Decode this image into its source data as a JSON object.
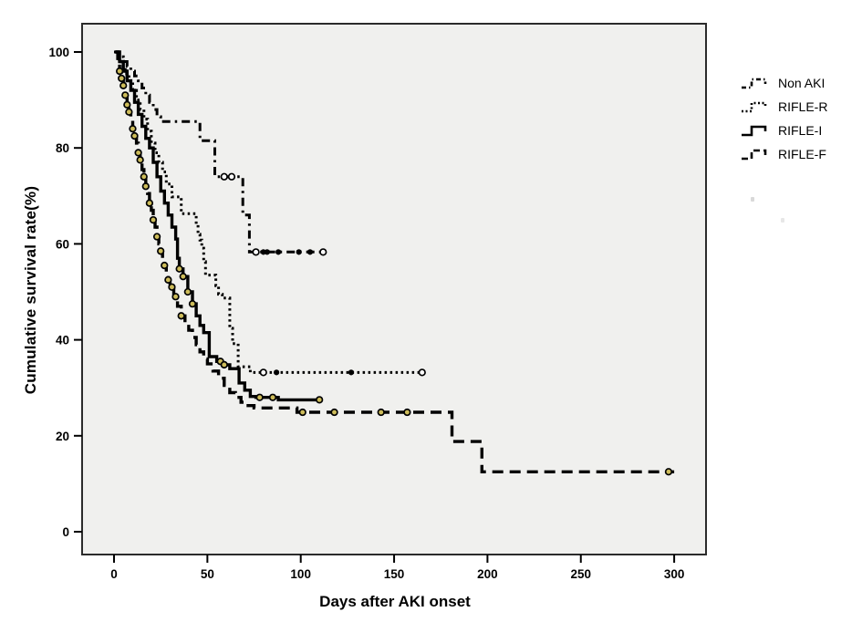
{
  "figure": {
    "background": "#ffffff",
    "plot_background": "#f0f0ee",
    "border_color": "#2b2b2b",
    "line_color": "#000000",
    "censor_open_fill": "#ffffff",
    "censor_yellow_fill": "#cdbc5a"
  },
  "chart_data": {
    "type": "line",
    "subtype": "kaplan-meier-step-survival",
    "title": "",
    "xlabel": "Days after AKI onset",
    "ylabel": "Cumulative survival rate(%)",
    "xlim": [
      0,
      300
    ],
    "ylim": [
      0,
      100
    ],
    "x_ticks": [
      0,
      50,
      100,
      150,
      200,
      250,
      300
    ],
    "y_ticks": [
      0,
      20,
      40,
      60,
      80,
      100
    ],
    "grid": false,
    "legend_position": "right-outside",
    "series": [
      {
        "name": "Non AKI",
        "dash": "dashdot",
        "stroke_width": 3,
        "censor_style": "open",
        "points": [
          [
            0,
            100
          ],
          [
            3,
            99
          ],
          [
            5,
            98
          ],
          [
            7,
            97
          ],
          [
            9,
            96
          ],
          [
            11,
            95
          ],
          [
            13,
            94
          ],
          [
            15,
            92.5
          ],
          [
            17,
            91
          ],
          [
            19,
            89.5
          ],
          [
            21,
            88
          ],
          [
            23,
            86.5
          ],
          [
            25,
            85.5
          ],
          [
            46,
            81.5
          ],
          [
            54,
            74
          ],
          [
            69,
            66
          ],
          [
            72.5,
            58.3
          ],
          [
            112,
            58.3
          ]
        ],
        "censor_days": [
          59,
          63,
          76,
          112
        ],
        "dot_days": [
          80,
          82,
          88,
          99,
          105
        ]
      },
      {
        "name": "RIFLE-R",
        "dash": "dotted",
        "stroke_width": 3,
        "censor_style": "open",
        "points": [
          [
            0,
            100
          ],
          [
            2,
            98.5
          ],
          [
            4,
            97
          ],
          [
            6,
            95.5
          ],
          [
            8,
            94
          ],
          [
            10,
            92
          ],
          [
            12,
            90
          ],
          [
            14,
            88
          ],
          [
            16,
            86
          ],
          [
            18,
            83.5
          ],
          [
            20,
            81
          ],
          [
            22,
            79
          ],
          [
            24,
            77
          ],
          [
            26,
            75
          ],
          [
            28,
            72.5
          ],
          [
            31,
            69.8
          ],
          [
            36,
            66.3
          ],
          [
            44,
            63.9
          ],
          [
            45,
            62
          ],
          [
            46,
            60.8
          ],
          [
            47,
            59.1
          ],
          [
            48,
            56.3
          ],
          [
            49,
            53.5
          ],
          [
            54.5,
            51.3
          ],
          [
            56,
            49.5
          ],
          [
            58,
            48.7
          ],
          [
            62,
            42.4
          ],
          [
            63.5,
            39.2
          ],
          [
            66.5,
            34.4
          ],
          [
            73,
            33.2
          ],
          [
            165,
            33.2
          ]
        ],
        "censor_days": [
          80,
          165
        ],
        "dot_days": [
          87,
          127
        ]
      },
      {
        "name": "RIFLE-I",
        "dash": "solid",
        "stroke_width": 3.4,
        "censor_style": "yellow",
        "points": [
          [
            1,
            100
          ],
          [
            3,
            98
          ],
          [
            5,
            96
          ],
          [
            7,
            94
          ],
          [
            9,
            92
          ],
          [
            11,
            89.5
          ],
          [
            13,
            87
          ],
          [
            15,
            84.5
          ],
          [
            17,
            82
          ],
          [
            19,
            80
          ],
          [
            21,
            77
          ],
          [
            23,
            74
          ],
          [
            25,
            71
          ],
          [
            27,
            68.5
          ],
          [
            29,
            66
          ],
          [
            31,
            63.5
          ],
          [
            33,
            61
          ],
          [
            34,
            57
          ],
          [
            35,
            54.8
          ],
          [
            37,
            53.2
          ],
          [
            39.5,
            50
          ],
          [
            42,
            47.5
          ],
          [
            44,
            45
          ],
          [
            46,
            43
          ],
          [
            48,
            41.5
          ],
          [
            51,
            36.5
          ],
          [
            55,
            35.5
          ],
          [
            58,
            34.8
          ],
          [
            62,
            34
          ],
          [
            67,
            31
          ],
          [
            70,
            29.5
          ],
          [
            73,
            28.2
          ],
          [
            76,
            28
          ],
          [
            88,
            27.5
          ],
          [
            110,
            27.5
          ]
        ],
        "censor_days": [
          35,
          37,
          39.5,
          42,
          57,
          59,
          78,
          85,
          110
        ],
        "dot_days": []
      },
      {
        "name": "RIFLE-F",
        "dash": "dashed",
        "stroke_width": 3.4,
        "censor_style": "yellow",
        "points": [
          [
            0.5,
            100
          ],
          [
            2,
            98
          ],
          [
            3,
            96
          ],
          [
            4,
            94.5
          ],
          [
            5,
            93
          ],
          [
            6,
            91
          ],
          [
            7,
            89
          ],
          [
            8,
            87.5
          ],
          [
            9,
            86
          ],
          [
            10,
            84
          ],
          [
            11,
            82.5
          ],
          [
            12,
            81
          ],
          [
            13,
            79
          ],
          [
            14,
            77.5
          ],
          [
            15,
            75.5
          ],
          [
            16,
            74
          ],
          [
            17,
            72
          ],
          [
            18,
            70.5
          ],
          [
            19,
            68.5
          ],
          [
            20,
            67
          ],
          [
            21,
            65
          ],
          [
            22,
            63.5
          ],
          [
            23,
            61.5
          ],
          [
            24,
            60
          ],
          [
            25,
            58.5
          ],
          [
            26,
            57
          ],
          [
            27,
            55.5
          ],
          [
            28,
            54
          ],
          [
            29,
            52.5
          ],
          [
            30,
            51
          ],
          [
            32,
            49
          ],
          [
            34,
            47
          ],
          [
            36,
            45
          ],
          [
            38,
            43.5
          ],
          [
            40,
            42
          ],
          [
            42,
            40.5
          ],
          [
            44,
            39
          ],
          [
            46,
            37.5
          ],
          [
            48,
            36
          ],
          [
            50,
            35
          ],
          [
            53,
            33.5
          ],
          [
            56,
            32
          ],
          [
            59,
            30.5
          ],
          [
            62,
            29
          ],
          [
            65,
            28
          ],
          [
            68,
            27
          ],
          [
            71,
            26.3
          ],
          [
            75,
            25.8
          ],
          [
            98,
            24.9
          ],
          [
            181,
            18.8
          ],
          [
            197,
            12.5
          ],
          [
            300,
            12.5
          ]
        ],
        "censor_days": [
          3,
          4,
          5,
          6,
          7,
          8,
          10,
          11,
          13,
          14,
          16,
          17,
          19,
          21,
          23,
          25,
          27,
          29,
          31,
          33,
          36,
          101,
          118,
          143,
          157,
          297
        ],
        "dot_days": []
      }
    ]
  },
  "legend": {
    "items": [
      {
        "label": "Non AKI",
        "dash": "dashdot"
      },
      {
        "label": "RIFLE-R",
        "dash": "dotted"
      },
      {
        "label": "RIFLE-I",
        "dash": "solid"
      },
      {
        "label": "RIFLE-F",
        "dash": "dashed"
      }
    ]
  }
}
